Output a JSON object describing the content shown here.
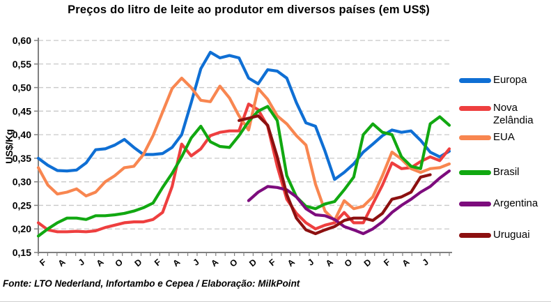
{
  "page": {
    "title": "Preços do litro de leite ao produtor em diversos países (em US$)",
    "footer": "Fonte: LTO Nederland, Infortambo e Cepea / Elaboração: MilkPoint"
  },
  "chart_data": {
    "type": "line",
    "title": "Preços do litro de leite ao produtor em diversos países (em US$)",
    "ylabel": "US$/Kg",
    "xlabel": "",
    "ylim": [
      0.15,
      0.6
    ],
    "grid": "horizontal-dashed",
    "legend_position": "right",
    "n_points": 44,
    "x_tick_labels": [
      "F",
      "A",
      "J",
      "A",
      "O",
      "D",
      "F",
      "A",
      "J",
      "A",
      "O",
      "D",
      "F",
      "A",
      "J",
      "A",
      "O",
      "D",
      "F",
      "A",
      "J"
    ],
    "x_tick_positions": [
      1,
      3,
      5,
      7,
      9,
      11,
      13,
      15,
      17,
      19,
      21,
      23,
      25,
      27,
      29,
      31,
      33,
      35,
      37,
      39,
      41
    ],
    "ytick_values": [
      0.6,
      0.55,
      0.5,
      0.45,
      0.4,
      0.35,
      0.3,
      0.25,
      0.2,
      0.15
    ],
    "ytick_labels": [
      "0,60",
      "0,55",
      "0,50",
      "0,45",
      "0,40",
      "0,35",
      "0,30",
      "0,25",
      "0,20",
      "0,15"
    ],
    "style": {
      "grid_color": "#c8c8c8",
      "axis_color": "#808080",
      "text_color": "#000000"
    },
    "series": [
      {
        "name": "Europa",
        "color": "#0f6fd4",
        "values": [
          0.35,
          0.335,
          0.324,
          0.323,
          0.325,
          0.34,
          0.368,
          0.37,
          0.378,
          0.39,
          0.373,
          0.358,
          0.358,
          0.36,
          0.373,
          0.4,
          0.468,
          0.54,
          0.575,
          0.563,
          0.568,
          0.563,
          0.52,
          0.508,
          0.538,
          0.535,
          0.52,
          0.468,
          0.425,
          0.418,
          0.365,
          0.305,
          0.32,
          0.338,
          0.363,
          0.38,
          0.398,
          0.41,
          0.405,
          0.408,
          0.388,
          0.363,
          0.353,
          0.365
        ]
      },
      {
        "name": "Nova Zelândia",
        "color": "#ee3f3f",
        "values": [
          0.213,
          0.198,
          0.194,
          0.194,
          0.195,
          0.194,
          0.196,
          0.203,
          0.208,
          0.213,
          0.215,
          0.215,
          0.22,
          0.235,
          0.29,
          0.38,
          0.355,
          0.37,
          0.398,
          0.405,
          0.408,
          0.408,
          0.465,
          0.453,
          0.418,
          0.333,
          0.263,
          0.233,
          0.213,
          0.2,
          0.208,
          0.213,
          0.235,
          0.213,
          0.213,
          0.253,
          0.293,
          0.34,
          0.328,
          0.33,
          0.343,
          0.353,
          0.345,
          0.37
        ]
      },
      {
        "name": "EUA",
        "color": "#f88650",
        "values": [
          0.33,
          0.293,
          0.274,
          0.278,
          0.285,
          0.27,
          0.278,
          0.3,
          0.313,
          0.33,
          0.333,
          0.358,
          0.398,
          0.448,
          0.498,
          0.52,
          0.5,
          0.473,
          0.47,
          0.503,
          0.478,
          0.44,
          0.41,
          0.498,
          0.475,
          0.44,
          0.423,
          0.398,
          0.378,
          0.295,
          0.238,
          0.218,
          0.26,
          0.243,
          0.248,
          0.268,
          0.313,
          0.363,
          0.348,
          0.328,
          0.32,
          0.328,
          0.33,
          0.338
        ]
      },
      {
        "name": "Brasil",
        "color": "#11a811",
        "values": [
          0.185,
          0.2,
          0.213,
          0.223,
          0.223,
          0.22,
          0.228,
          0.228,
          0.23,
          0.233,
          0.238,
          0.245,
          0.255,
          0.288,
          0.318,
          0.353,
          0.393,
          0.418,
          0.385,
          0.375,
          0.373,
          0.398,
          0.428,
          0.45,
          0.46,
          0.43,
          0.313,
          0.268,
          0.248,
          0.243,
          0.253,
          0.258,
          0.283,
          0.31,
          0.4,
          0.423,
          0.405,
          0.4,
          0.353,
          0.333,
          0.328,
          0.423,
          0.438,
          0.42
        ]
      },
      {
        "name": "Argentina",
        "color": "#7d0c7d",
        "values": [
          null,
          null,
          null,
          null,
          null,
          null,
          null,
          null,
          null,
          null,
          null,
          null,
          null,
          null,
          null,
          null,
          null,
          null,
          null,
          null,
          null,
          null,
          0.26,
          0.278,
          0.29,
          0.288,
          0.283,
          0.268,
          0.243,
          0.23,
          0.228,
          0.22,
          0.205,
          0.198,
          0.19,
          0.2,
          0.215,
          0.235,
          0.25,
          0.263,
          0.278,
          0.29,
          0.308,
          0.323
        ]
      },
      {
        "name": "Uruguai",
        "color": "#8c1010",
        "values": [
          null,
          null,
          null,
          null,
          null,
          null,
          null,
          null,
          null,
          null,
          null,
          null,
          null,
          null,
          null,
          null,
          null,
          null,
          null,
          null,
          null,
          0.43,
          0.435,
          0.44,
          0.42,
          0.353,
          0.273,
          0.223,
          0.198,
          0.19,
          0.198,
          0.205,
          0.218,
          0.223,
          0.223,
          0.218,
          0.233,
          0.263,
          0.268,
          0.278,
          0.31,
          0.315,
          null,
          null
        ]
      }
    ]
  }
}
